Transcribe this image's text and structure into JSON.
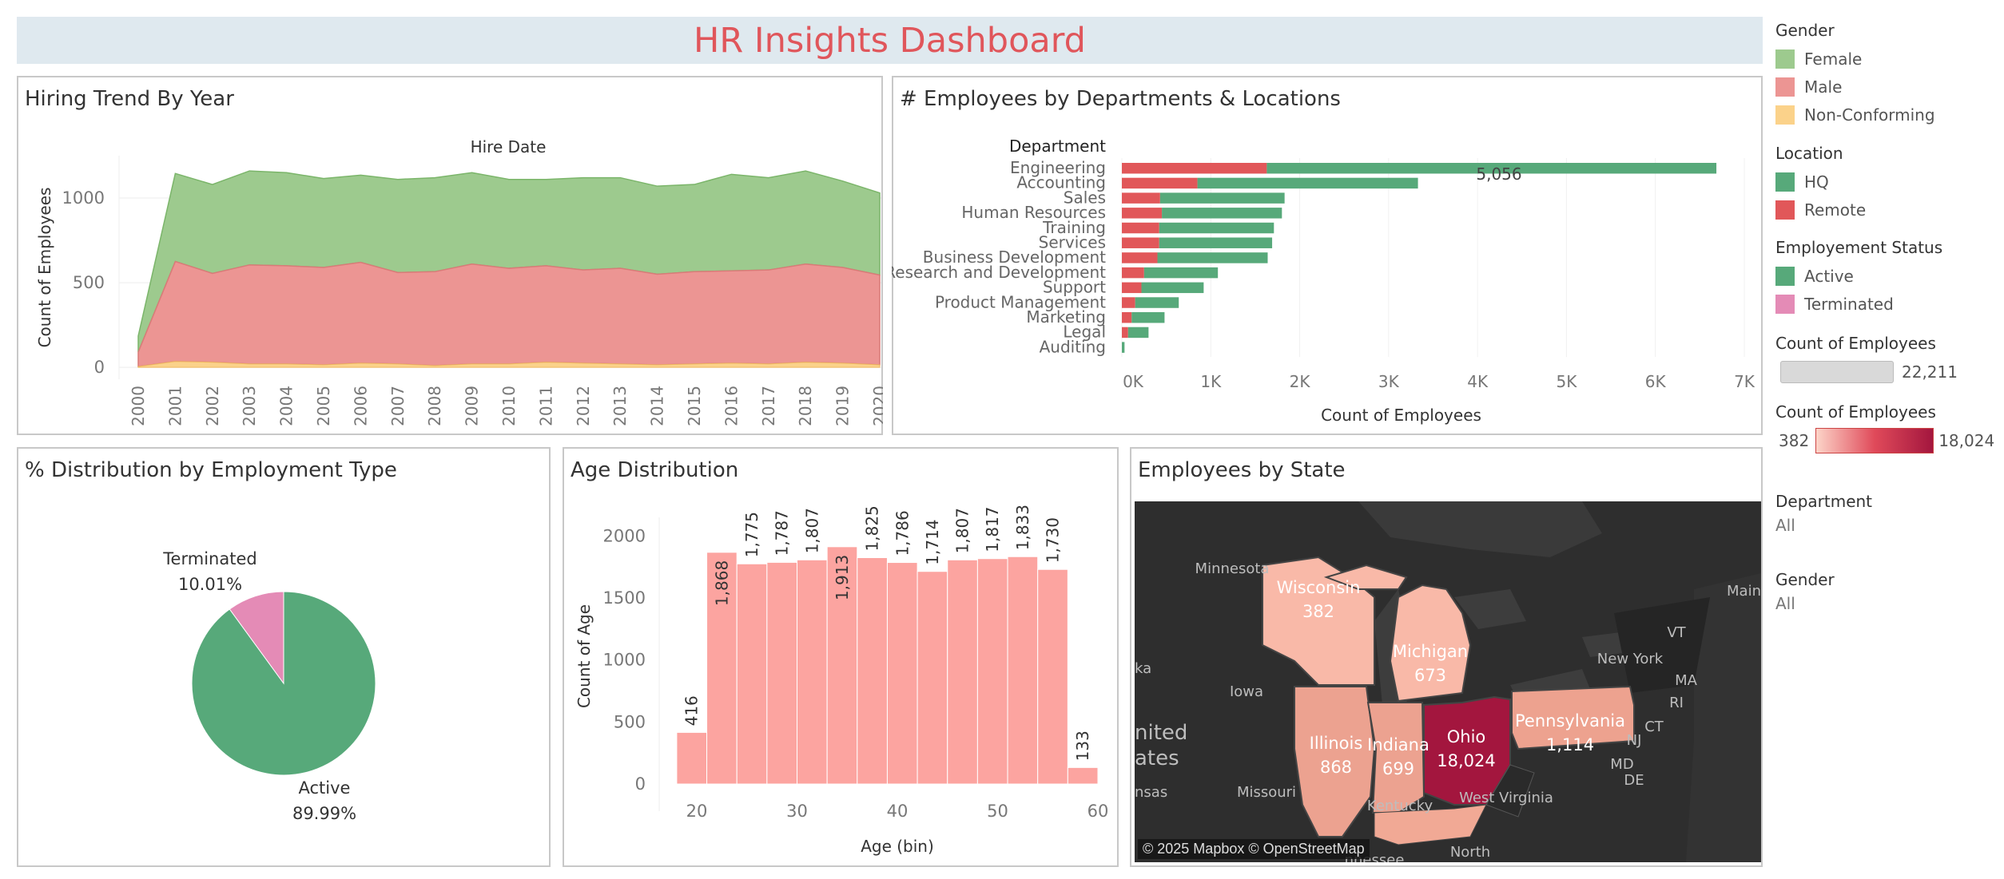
{
  "dashboard_title": "HR Insights Dashboard",
  "colors": {
    "female": "#9dca8e",
    "male": "#ec9593",
    "nonconforming": "#fbd28a",
    "hq": "#57a97a",
    "remote": "#e15759",
    "active": "#57a97a",
    "terminated": "#e48bb6",
    "bar": "#fca4a0",
    "map_low": "#f9b9a8",
    "map_high": "#a3163e"
  },
  "panels": {
    "hiring": "Hiring Trend By Year",
    "departments": "# Employees by Departments & Locations",
    "employment": "% Distribution by Employment Type",
    "age": "Age Distribution",
    "state": "Employees by State"
  },
  "chart_data": [
    {
      "type": "area",
      "title": "Hiring Trend By Year",
      "subtitle": "Hire Date",
      "ylabel": "Count of Employees",
      "xlabel": "",
      "ylim": [
        -70,
        1250
      ],
      "yticks": [
        "0",
        "500",
        "1000"
      ],
      "x": [
        "2000",
        "2001",
        "2002",
        "2003",
        "2004",
        "2005",
        "2006",
        "2007",
        "2008",
        "2009",
        "2010",
        "2011",
        "2012",
        "2013",
        "2014",
        "2015",
        "2016",
        "2017",
        "2018",
        "2019",
        "2020"
      ],
      "stacked": true,
      "series": [
        {
          "name": "Non-Conforming",
          "values": [
            5,
            35,
            30,
            20,
            20,
            15,
            25,
            20,
            10,
            20,
            20,
            30,
            25,
            20,
            15,
            20,
            25,
            20,
            30,
            25,
            15
          ]
        },
        {
          "name": "Male",
          "values": [
            90,
            625,
            555,
            605,
            600,
            590,
            620,
            560,
            565,
            610,
            585,
            600,
            575,
            585,
            550,
            565,
            570,
            575,
            610,
            590,
            545
          ]
        },
        {
          "name": "Female",
          "values": [
            185,
            1145,
            1080,
            1160,
            1150,
            1115,
            1135,
            1110,
            1120,
            1150,
            1110,
            1110,
            1120,
            1120,
            1070,
            1080,
            1140,
            1120,
            1160,
            1100,
            1030
          ]
        }
      ]
    },
    {
      "type": "bar",
      "orientation": "horizontal",
      "title": "# Employees by Departments & Locations",
      "row_header": "Department",
      "xlabel": "Count of Employees",
      "xlim": [
        0,
        7000
      ],
      "xticks": [
        "0K",
        "1K",
        "2K",
        "3K",
        "4K",
        "5K",
        "6K",
        "7K"
      ],
      "categories": [
        "Engineering",
        "Accounting",
        "Sales",
        "Human Resources",
        "Training",
        "Services",
        "Business Development",
        "Research and Development",
        "Support",
        "Product Management",
        "Marketing",
        "Legal",
        "Auditing"
      ],
      "series": [
        {
          "name": "Remote",
          "values": [
            1630,
            850,
            430,
            450,
            420,
            420,
            400,
            250,
            220,
            150,
            110,
            70,
            0
          ]
        },
        {
          "name": "HQ",
          "values": [
            5056,
            2480,
            1400,
            1350,
            1290,
            1270,
            1240,
            830,
            700,
            490,
            370,
            230,
            30
          ]
        }
      ],
      "annotation": "5,056"
    },
    {
      "type": "pie",
      "title": "% Distribution by Employment Type",
      "slices": [
        {
          "name": "Active",
          "value": 89.99,
          "label": "89.99%"
        },
        {
          "name": "Terminated",
          "value": 10.01,
          "label": "10.01%"
        }
      ]
    },
    {
      "type": "bar",
      "title": "Age Distribution",
      "xlabel": "Age (bin)",
      "ylabel": "Count of Age",
      "xlim": [
        17,
        61
      ],
      "ylim": [
        -90,
        2150
      ],
      "xticks": [
        "20",
        "30",
        "40",
        "50",
        "60"
      ],
      "yticks": [
        "0",
        "500",
        "1000",
        "1500",
        "2000"
      ],
      "bins": [
        18,
        21,
        24,
        27,
        30,
        33,
        36,
        39,
        42,
        45,
        48,
        51,
        54,
        57
      ],
      "bin_width": 3,
      "values": [
        416,
        1868,
        1775,
        1787,
        1807,
        1913,
        1825,
        1786,
        1714,
        1807,
        1817,
        1833,
        1730,
        133
      ],
      "labels": [
        "416",
        "1,868",
        "1,775",
        "1,787",
        "1,807",
        "1,913",
        "1,825",
        "1,786",
        "1,714",
        "1,807",
        "1,817",
        "1,833",
        "1,730",
        "133"
      ]
    }
  ],
  "map": {
    "states": [
      {
        "name": "Wisconsin",
        "value": "382"
      },
      {
        "name": "Michigan",
        "value": "673"
      },
      {
        "name": "Illinois",
        "value": "868"
      },
      {
        "name": "Indiana",
        "value": "699"
      },
      {
        "name": "Ohio",
        "value": "18,024"
      },
      {
        "name": "Pennsylvania",
        "value": "1,114"
      }
    ],
    "labels": [
      "Minnesota",
      "Iowa",
      "Missouri",
      "New York",
      "West Virginia",
      "Kentucky",
      "VT",
      "MA",
      "RI",
      "CT",
      "NJ",
      "MD",
      "DE",
      "Main",
      "nited",
      "ates",
      "ka",
      "nsas",
      "North",
      "nnessee"
    ],
    "credit": "© 2025 Mapbox © OpenStreetMap"
  },
  "legend": {
    "gender_title": "Gender",
    "gender": [
      "Female",
      "Male",
      "Non-Conforming"
    ],
    "location_title": "Location",
    "location": [
      "HQ",
      "Remote"
    ],
    "status_title": "Employement Status",
    "status": [
      "Active",
      "Terminated"
    ],
    "count_title": "Count of Employees",
    "count_value": "22,211",
    "count2_title": "Count of Employees",
    "count2_min": "382",
    "count2_max": "18,024",
    "dept_filter_title": "Department",
    "dept_filter_value": "All",
    "gender_filter_title": "Gender",
    "gender_filter_value": "All"
  }
}
